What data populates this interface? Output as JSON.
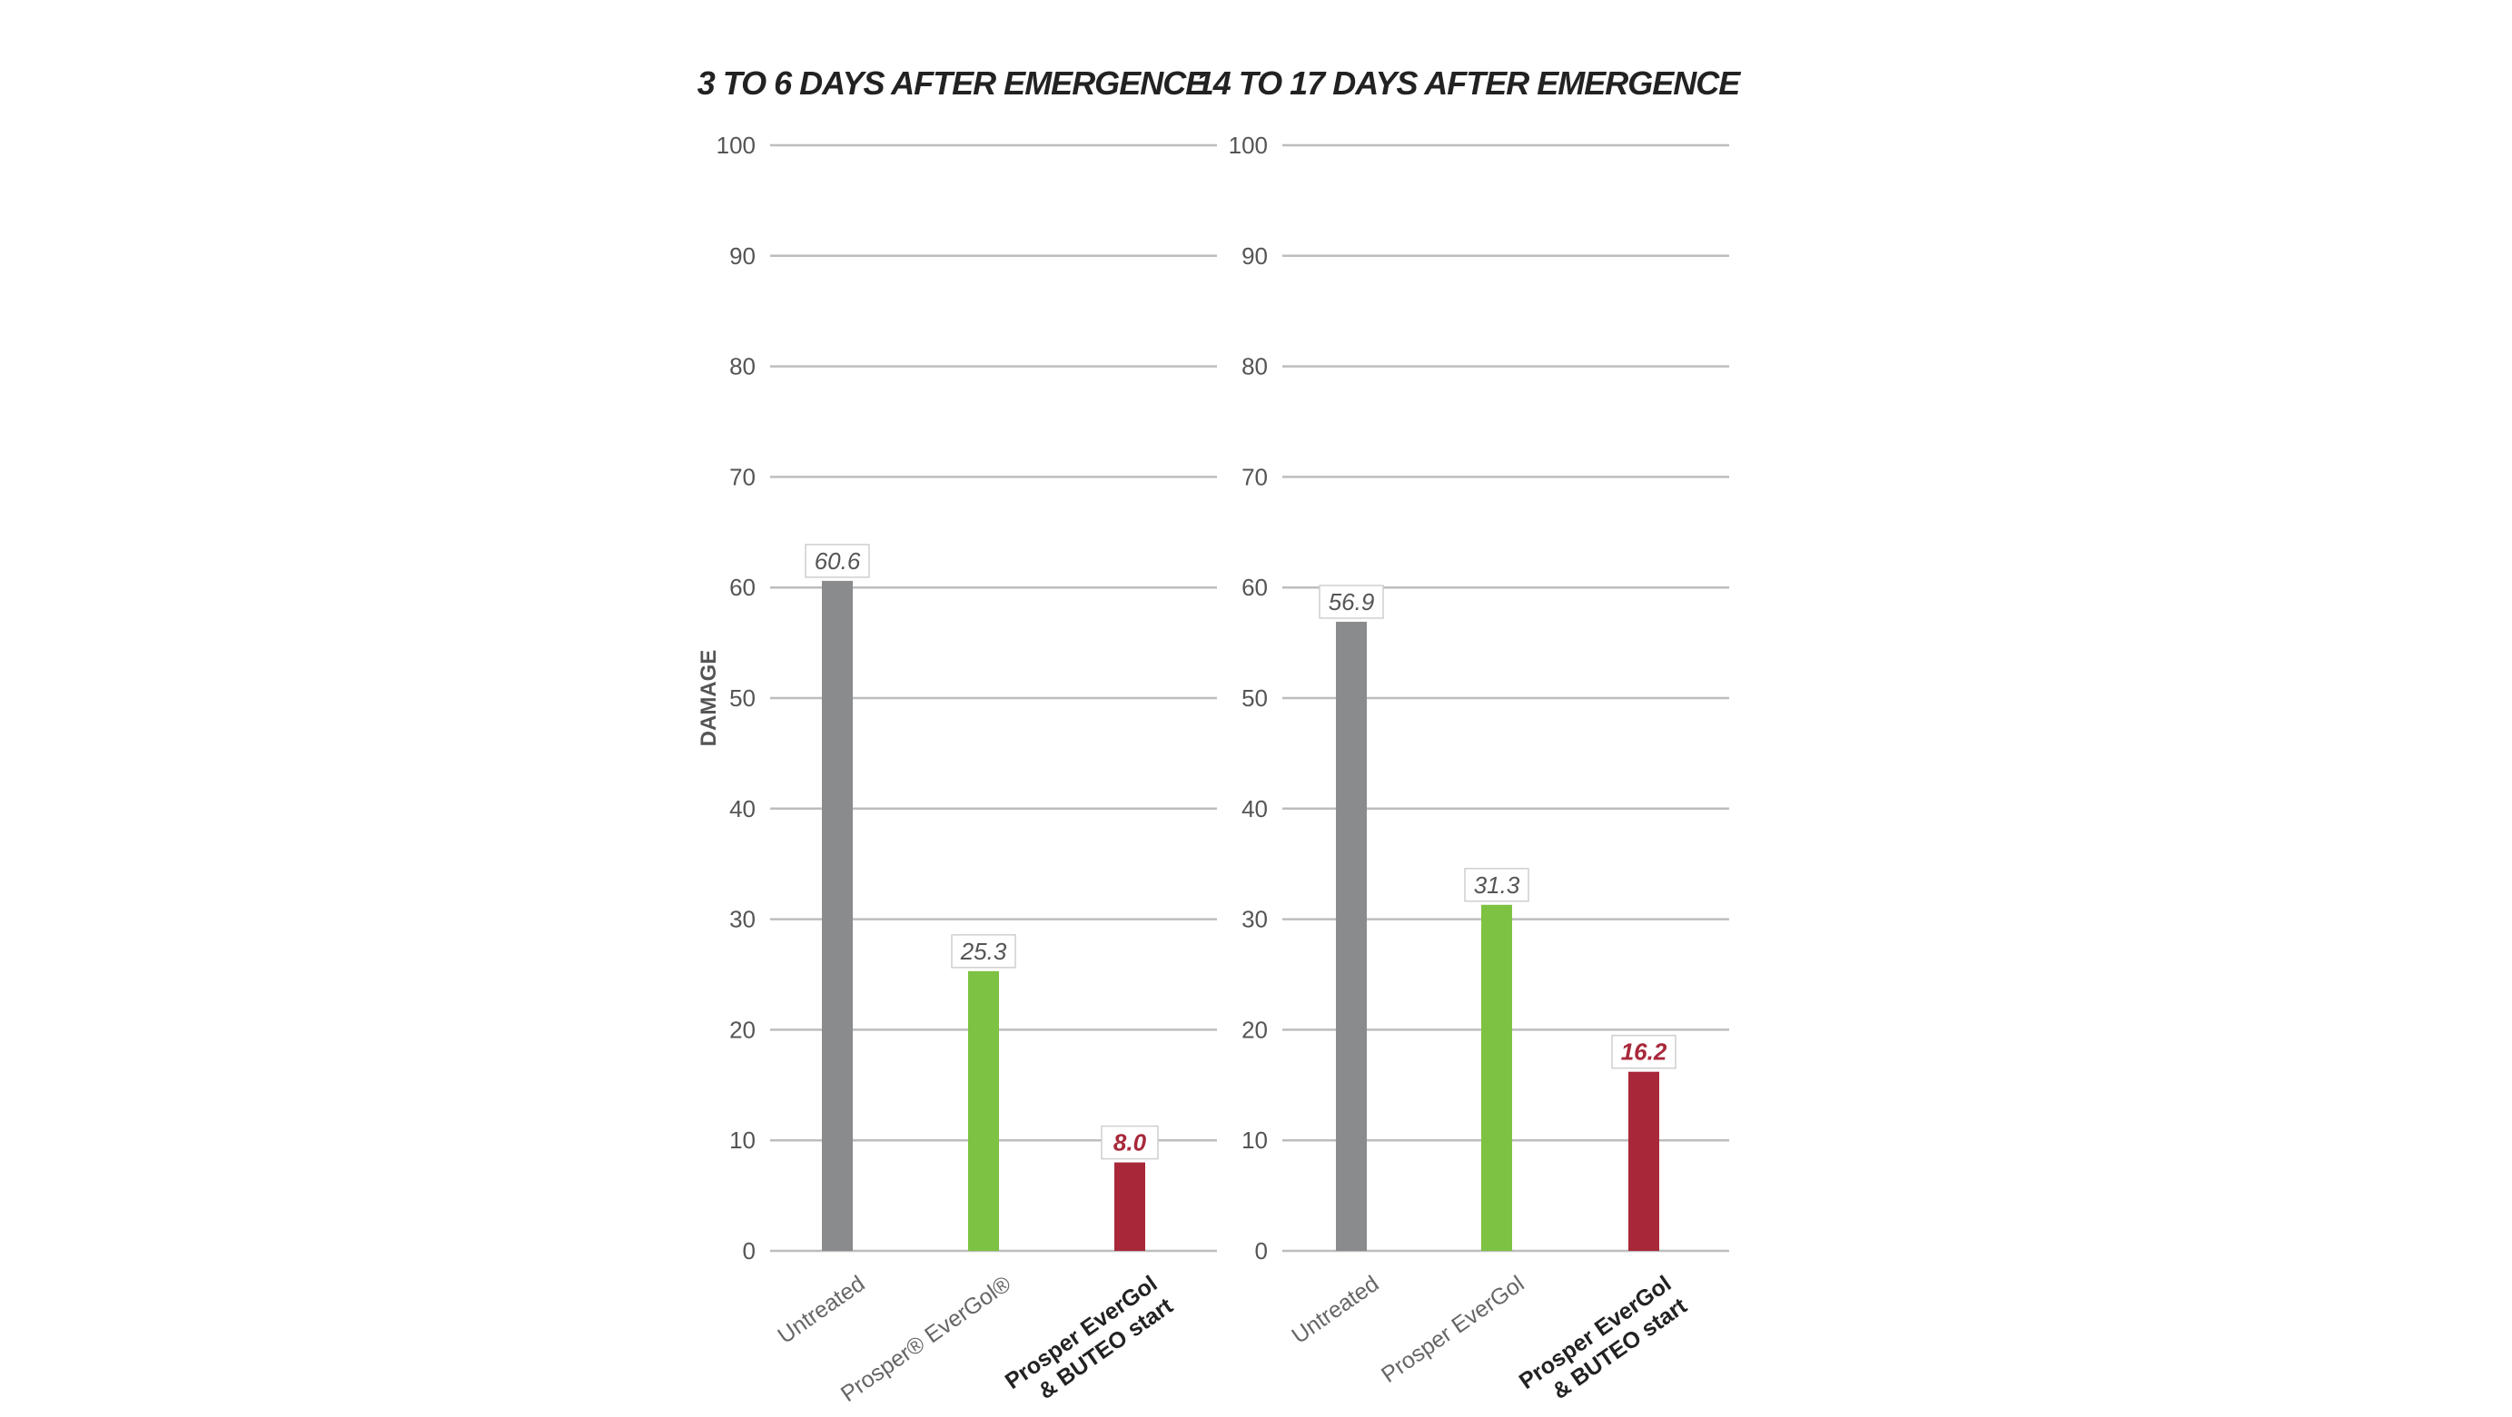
{
  "colors": {
    "untreated": "#8a8b8d",
    "evergol": "#7dc242",
    "buteo": "#a8283a",
    "grid": "#bdbdbd"
  },
  "chart_data": [
    {
      "type": "bar",
      "title": "3 TO 6 DAYS AFTER EMERGENCE",
      "ylabel": "DAMAGE",
      "xlabel": "",
      "ylim": [
        0,
        100
      ],
      "yticks": [
        0,
        10,
        20,
        30,
        40,
        50,
        60,
        70,
        80,
        90,
        100
      ],
      "grid": true,
      "categories": [
        "Untreated",
        "Prosper® EverGol®",
        "Prosper EverGol & BUTEO start"
      ],
      "category_lines": [
        [
          "Untreated"
        ],
        [
          "Prosper® EverGol®"
        ],
        [
          "Prosper EverGol",
          "& BUTEO start"
        ]
      ],
      "values": [
        60.6,
        25.3,
        8.0
      ],
      "value_labels": [
        "60.6",
        "25.3",
        "8.0"
      ],
      "bar_colors": [
        "#8a8b8d",
        "#7dc242",
        "#a8283a"
      ]
    },
    {
      "type": "bar",
      "title": "14 TO 17 DAYS AFTER EMERGENCE",
      "ylabel": "",
      "xlabel": "",
      "ylim": [
        0,
        100
      ],
      "yticks": [
        0,
        10,
        20,
        30,
        40,
        50,
        60,
        70,
        80,
        90,
        100
      ],
      "grid": true,
      "categories": [
        "Untreated",
        "Prosper EverGol",
        "Prosper EverGol & BUTEO start"
      ],
      "category_lines": [
        [
          "Untreated"
        ],
        [
          "Prosper EverGol"
        ],
        [
          "Prosper EverGol",
          "& BUTEO start"
        ]
      ],
      "values": [
        56.9,
        31.3,
        16.2
      ],
      "value_labels": [
        "56.9",
        "31.3",
        "16.2"
      ],
      "bar_colors": [
        "#8a8b8d",
        "#7dc242",
        "#a8283a"
      ]
    }
  ]
}
